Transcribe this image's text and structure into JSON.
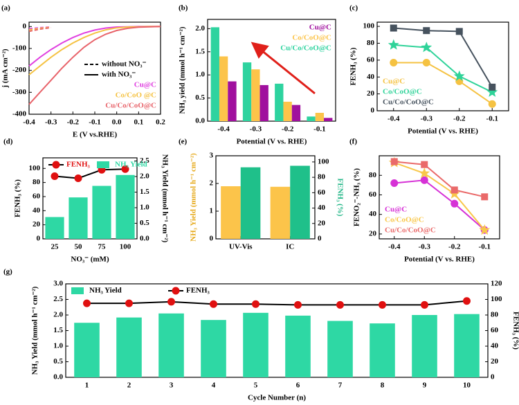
{
  "chart_data": [
    {
      "label": "(a)",
      "type": "line",
      "x": [
        -0.4,
        -0.35,
        -0.3,
        -0.25,
        -0.2,
        -0.15,
        -0.1,
        -0.05,
        0,
        0.05,
        0.1,
        0.15,
        0.2
      ],
      "xlabel": "E (V vs.RHE)",
      "ylabel": "j (mA cm⁻²)",
      "xlim": [
        -0.4,
        0.2
      ],
      "xticks": [
        -0.4,
        -0.3,
        -0.2,
        -0.1,
        {
          "value": 0,
          "label": "0.0"
        },
        0.1,
        0.2
      ],
      "ylim": [
        -400,
        20
      ],
      "yticks": [
        -400,
        -300,
        -200,
        -100,
        0
      ],
      "line_styles": [
        "without NO₃⁻",
        "with NO₃⁻"
      ],
      "legend": "lower right",
      "legend_colored": true,
      "legend_symbols": false,
      "series": [
        {
          "name": "Cu@C",
          "color": "#e040e0",
          "values": [
            -180,
            -140,
            -105,
            -75,
            -50,
            -30,
            -16,
            -7,
            -2,
            -1,
            0,
            0,
            0
          ]
        },
        {
          "name": "Co/CoO @C",
          "color": "#f5c242",
          "values": [
            -220,
            -180,
            -140,
            -105,
            -75,
            -50,
            -30,
            -15,
            -6,
            -2,
            -1,
            0,
            0
          ]
        },
        {
          "name": "Cu/Co/CoO@C",
          "color": "#e8636a",
          "values": [
            -355,
            -300,
            -245,
            -190,
            -140,
            -95,
            -60,
            -35,
            -18,
            -8,
            -3,
            -1,
            0
          ]
        },
        {
          "color": "#e040e0",
          "dashed": true,
          "values": [
            -10,
            -5,
            -2,
            null,
            null,
            null,
            null,
            null,
            null,
            null,
            null,
            null,
            null
          ]
        },
        {
          "color": "#f5c242",
          "dashed": true,
          "values": [
            -15,
            -8,
            -3,
            null,
            null,
            null,
            null,
            null,
            null,
            null,
            null,
            null,
            null
          ]
        },
        {
          "color": "#e8636a",
          "dashed": true,
          "values": [
            -22,
            -12,
            -5,
            null,
            null,
            null,
            null,
            null,
            null,
            null,
            null,
            null,
            null
          ]
        }
      ]
    },
    {
      "label": "(b)",
      "type": "bar",
      "categories": [
        "-0.4",
        "-0.3",
        "-0.2",
        "-0.1"
      ],
      "xlabel": "Potential (V vs. RHE)",
      "ylabel": "NH₃ yield (mmol h⁻¹ cm⁻²)",
      "ylim": [
        0,
        2.2
      ],
      "yticks": [
        {
          "value": 0,
          "label": "0.0"
        },
        0.5,
        {
          "value": 1,
          "label": "1.0"
        },
        1.5,
        {
          "value": 2,
          "label": "2.0"
        }
      ],
      "legend": "upper right",
      "legend_colored": true,
      "legend_symbols": false,
      "legend_reversed": true,
      "series": [
        {
          "name": "Cu/Co/CoO@C",
          "color": "#2ed39f",
          "values": [
            2.03,
            1.27,
            0.81,
            0.1
          ]
        },
        {
          "name": "Co/CoO@C",
          "color": "#fcc44a",
          "values": [
            1.4,
            1.12,
            0.42,
            0.18
          ]
        },
        {
          "name": "Cu@C",
          "color": "#a0109e",
          "values": [
            0.86,
            0.78,
            0.35,
            0.07
          ]
        }
      ]
    },
    {
      "label": "(c)",
      "type": "line",
      "x": [
        -0.4,
        -0.3,
        -0.2,
        -0.1
      ],
      "xlabel": "Potential (V vs. RHE)",
      "ylabel": "FENH₃ (%)",
      "xlim": [
        -0.45,
        -0.05
      ],
      "xticks": [
        -0.4,
        -0.3,
        -0.2,
        -0.1
      ],
      "ylim": [
        0,
        105
      ],
      "yticks": [
        0,
        20,
        40,
        60,
        80,
        100
      ],
      "legend": "lower left",
      "legend_colored": true,
      "legend_symbols": false,
      "series": [
        {
          "name": "Cu@C",
          "color": "#f5c242",
          "marker": "circle",
          "values": [
            57,
            57,
            35,
            8
          ]
        },
        {
          "name": "Co/CoO@C",
          "color": "#2fd399",
          "marker": "star",
          "values": [
            78,
            75,
            41,
            22
          ]
        },
        {
          "name": "Cu/Co/CoO@C",
          "color": "#46525e",
          "marker": "square",
          "values": [
            98,
            95,
            94,
            28
          ]
        }
      ]
    },
    {
      "label": "(d)",
      "type": "bar",
      "categories": [
        "25",
        "50",
        "75",
        "100"
      ],
      "xlabel": "NO₃⁻ (mM)",
      "ylabel": "FENH₃ (%)",
      "y2label": "NH₃ Yield (mmol h⁻¹ cm⁻²)",
      "ylim": [
        0,
        115
      ],
      "yticks": [
        0,
        20,
        40,
        60,
        80,
        100
      ],
      "y2lim": [
        0,
        2.6
      ],
      "y2ticks": [
        {
          "value": 0,
          "label": "0.0"
        },
        0.5,
        {
          "value": 1,
          "label": "1.0"
        },
        1.5,
        {
          "value": 2,
          "label": "2.0"
        },
        2.5
      ],
      "legend": "upper left",
      "legend_colored": true,
      "legend_row": true,
      "series": [
        {
          "name": "FENH₃",
          "type": "line",
          "color": "#e01010",
          "line_color": "#000",
          "marker": "circle",
          "values": [
            89,
            86,
            98,
            99
          ]
        },
        {
          "name": "NH₃ Yield",
          "axis": "y2",
          "color": "#2ed8a4",
          "values": [
            0.7,
            1.33,
            1.7,
            2.05
          ]
        }
      ]
    },
    {
      "label": "(e)",
      "type": "bar",
      "categories": [
        "UV-Vis",
        "IC"
      ],
      "ylabel": "NH₃ Yield (mmol h⁻¹ cm⁻²)",
      "y2label": "FENH₃ (%)",
      "ylabel_color": "#e6a817",
      "y2label_color": "#1fb585",
      "ylim": [
        0,
        3
      ],
      "yticks": [
        0,
        1,
        2,
        3
      ],
      "y2lim": [
        0,
        108
      ],
      "y2ticks": [
        0,
        20,
        40,
        60,
        80,
        100
      ],
      "series": [
        {
          "color": "#fcc44a",
          "values": [
            1.9,
            1.88
          ]
        },
        {
          "axis": "y2",
          "color": "#1fc08a",
          "values": [
            93,
            95
          ]
        }
      ]
    },
    {
      "label": "(f)",
      "type": "line",
      "x": [
        -0.4,
        -0.3,
        -0.2,
        -0.1
      ],
      "xlabel": "Potential (V vs. RHE)",
      "ylabel": "FENO₂⁻-NH₃ (%)",
      "xlim": [
        -0.45,
        -0.05
      ],
      "xticks": [
        -0.4,
        -0.3,
        -0.2,
        -0.1
      ],
      "ylim": [
        15,
        100
      ],
      "yticks": [
        20,
        40,
        60,
        80
      ],
      "legend": "lower left",
      "legend_colored": true,
      "legend_symbols": false,
      "series": [
        {
          "name": "Cu@C",
          "color": "#d631d6",
          "marker": "circle",
          "values": [
            72,
            75,
            51,
            24
          ]
        },
        {
          "name": "Co/CoO@C",
          "color": "#f8c74a",
          "marker": "star",
          "values": [
            93,
            82,
            61,
            24
          ]
        },
        {
          "name": "Cu/Co/CoO@C",
          "color": "#ea6a6a",
          "marker": "square",
          "values": [
            94,
            91,
            65,
            58
          ]
        }
      ]
    },
    {
      "label": "(g)",
      "type": "bar",
      "categories": [
        "1",
        "2",
        "3",
        "4",
        "5",
        "6",
        "7",
        "8",
        "9",
        "10"
      ],
      "xlabel": "Cycle Number (n)",
      "ylabel": "NH₃ Yield (mmol h⁻¹ cm⁻²)",
      "y2label": "FENH₃ (%)",
      "ylim": [
        0,
        3
      ],
      "yticks": [
        {
          "value": 0,
          "label": "0.0"
        },
        0.5,
        {
          "value": 1,
          "label": "1.0"
        },
        1.5,
        {
          "value": 2,
          "label": "2.0"
        },
        2.5,
        {
          "value": 3,
          "label": "3.0"
        }
      ],
      "y2lim": [
        0,
        120
      ],
      "y2ticks": [
        0,
        20,
        40,
        60,
        80,
        100,
        120
      ],
      "legend": "upper left",
      "legend_row": true,
      "bar_width": 0.6,
      "series": [
        {
          "name": "NH₃ Yield",
          "color": "#2ed8a4",
          "values": [
            1.75,
            1.92,
            2.05,
            1.84,
            2.07,
            1.98,
            1.81,
            1.73,
            2.0,
            2.03
          ]
        },
        {
          "name": "FENH₃",
          "type": "line",
          "axis": "y2",
          "color": "#e01010",
          "line_color": "#000",
          "marker": "circle",
          "values": [
            95,
            95,
            97,
            94,
            94,
            93,
            93,
            93,
            93,
            98
          ]
        }
      ]
    }
  ]
}
